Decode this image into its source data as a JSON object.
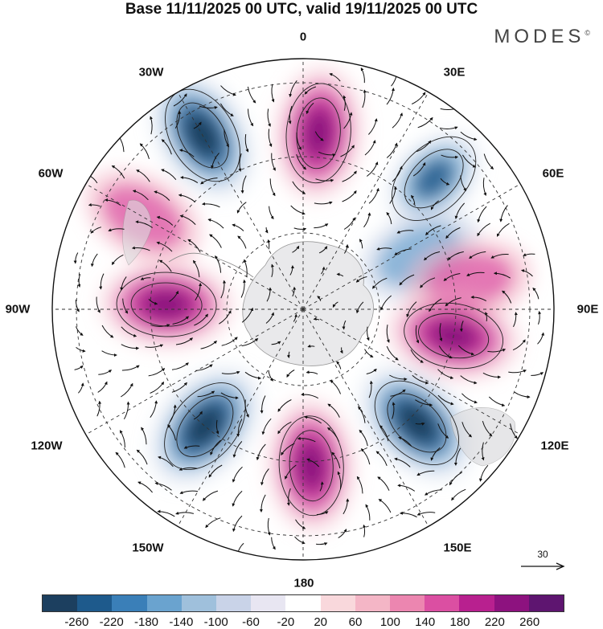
{
  "title": "Base 11/11/2025 00 UTC, valid 19/11/2025 00 UTC",
  "brand": "MODES",
  "brand_mark": "©",
  "longitude_labels": {
    "lon_0": "0",
    "lon_30e": "30E",
    "lon_60e": "60E",
    "lon_90e": "90E",
    "lon_120e": "120E",
    "lon_150e": "150E",
    "lon_180": "180",
    "lon_150w": "150W",
    "lon_120w": "120W",
    "lon_90w": "90W",
    "lon_60w": "60W",
    "lon_30w": "30W"
  },
  "reference_vector": "30",
  "colorbar": {
    "colors": [
      "#1c3f5f",
      "#1e5a8c",
      "#3a7fb8",
      "#6aa3cf",
      "#9fc0dc",
      "#c9d3e8",
      "#e8e6f2",
      "#ffffff",
      "#f9d8dc",
      "#f4b6c6",
      "#ec86b0",
      "#db4fa2",
      "#b8208f",
      "#8d127f",
      "#5e1570"
    ],
    "labels": [
      "-260",
      "-220",
      "-180",
      "-140",
      "-100",
      "-60",
      "-20",
      "20",
      "60",
      "100",
      "140",
      "180",
      "220",
      "260"
    ]
  },
  "anomaly_features": [
    {
      "sign": "negative",
      "lon": 330,
      "lat_km": 250,
      "strength": 3
    },
    {
      "sign": "positive",
      "lon": 5,
      "lat_km": 220,
      "strength": 3
    },
    {
      "sign": "negative",
      "lon": 45,
      "lat_km": 230,
      "strength": 2
    },
    {
      "sign": "negative",
      "lon": 65,
      "lat_km": 160,
      "strength": 1
    },
    {
      "sign": "positive",
      "lon": 80,
      "lat_km": 210,
      "strength": 1
    },
    {
      "sign": "positive",
      "lon": 100,
      "lat_km": 190,
      "strength": 3
    },
    {
      "sign": "negative",
      "lon": 135,
      "lat_km": 200,
      "strength": 3
    },
    {
      "sign": "positive",
      "lon": 177,
      "lat_km": 195,
      "strength": 3
    },
    {
      "sign": "negative",
      "lon": 220,
      "lat_km": 190,
      "strength": 3
    },
    {
      "sign": "positive",
      "lon": 272,
      "lat_km": 170,
      "strength": 3
    },
    {
      "sign": "positive",
      "lon": 300,
      "lat_km": 230,
      "strength": 1
    }
  ]
}
